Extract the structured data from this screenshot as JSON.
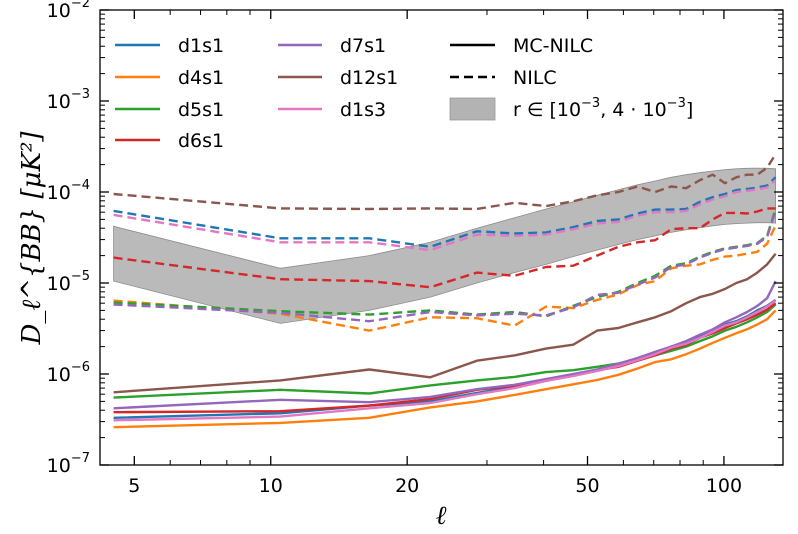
{
  "chart_data": {
    "type": "line",
    "xscale": "log",
    "yscale": "log",
    "xlim": [
      4.2,
      135
    ],
    "ylim": [
      1e-07,
      0.01
    ],
    "xlabel": "ℓ",
    "ylabel": "D_ℓ^{BB} [μK²]",
    "x_ticks": [
      {
        "value": 5,
        "label": "5"
      },
      {
        "value": 10,
        "label": "10"
      },
      {
        "value": 20,
        "label": "20"
      },
      {
        "value": 50,
        "label": "50"
      },
      {
        "value": 100,
        "label": "100"
      }
    ],
    "y_ticks": [
      {
        "value": 1e-07,
        "base": "10",
        "exp": "−7"
      },
      {
        "value": 1e-06,
        "base": "10",
        "exp": "−6"
      },
      {
        "value": 1e-05,
        "base": "10",
        "exp": "−5"
      },
      {
        "value": 0.0001,
        "base": "10",
        "exp": "−4"
      },
      {
        "value": 0.001,
        "base": "10",
        "exp": "−3"
      },
      {
        "value": 0.01,
        "base": "10",
        "exp": "−2"
      }
    ],
    "x": [
      4.5,
      10.5,
      16.5,
      22.5,
      28.5,
      34.5,
      40.5,
      46.5,
      52.5,
      58.5,
      64.5,
      70.5,
      76.5,
      82.5,
      88.5,
      94.5,
      100.5,
      106.5,
      112.5,
      118.5,
      124.5,
      130
    ],
    "series": [
      {
        "name": "d1s1",
        "style": "dashed",
        "color": "#1f77b4",
        "values": [
          6.2e-05,
          3.1e-05,
          3.1e-05,
          2.5e-05,
          3.7e-05,
          3.5e-05,
          3.6e-05,
          4.1e-05,
          4.8e-05,
          5e-05,
          5.8e-05,
          6.4e-05,
          6.4e-05,
          6.5e-05,
          7.8e-05,
          8.8e-05,
          9.5e-05,
          0.000105,
          0.000108,
          0.000112,
          0.000118,
          0.000145
        ]
      },
      {
        "name": "d4s1",
        "style": "dashed",
        "color": "#ff7f0e",
        "values": [
          6.4e-06,
          4.6e-06,
          3e-06,
          4.2e-06,
          4.1e-06,
          3.4e-06,
          5.5e-06,
          5.3e-06,
          6.5e-06,
          7.5e-06,
          9.5e-06,
          1.05e-05,
          1.45e-05,
          1.55e-05,
          1.6e-05,
          1.8e-05,
          1.95e-05,
          2e-05,
          2.1e-05,
          2.2e-05,
          2.7e-05,
          4.3e-05
        ]
      },
      {
        "name": "d5s1",
        "style": "dashed",
        "color": "#2ca02c",
        "values": [
          6.1e-06,
          4.9e-06,
          4.5e-06,
          5e-06,
          4.5e-06,
          4.8e-06,
          4.3e-06,
          5.6e-06,
          7e-06,
          8e-06,
          1e-05,
          1.2e-05,
          1.55e-05,
          1.65e-05,
          1.95e-05,
          2.2e-05,
          2.4e-05,
          2.5e-05,
          2.6e-05,
          2.75e-05,
          3.3e-05,
          6.5e-05
        ]
      },
      {
        "name": "d6s1",
        "style": "dashed",
        "color": "#d62728",
        "values": [
          1.9e-05,
          1.1e-05,
          1.05e-05,
          9e-06,
          1.3e-05,
          1.2e-05,
          1.5e-05,
          1.55e-05,
          2e-05,
          2.5e-05,
          2.8e-05,
          2.95e-05,
          3.9e-05,
          4e-05,
          4e-05,
          5e-05,
          5.9e-05,
          5.9e-05,
          5.8e-05,
          6.1e-05,
          6.6e-05,
          6.6e-05
        ]
      },
      {
        "name": "d7s1",
        "style": "dashed",
        "color": "#9467bd",
        "values": [
          5.8e-06,
          4.7e-06,
          3.8e-06,
          4.8e-06,
          4.4e-06,
          4.6e-06,
          4.4e-06,
          5.4e-06,
          7.4e-06,
          7.8e-06,
          9.6e-06,
          1.15e-05,
          1.5e-05,
          1.6e-05,
          1.9e-05,
          2.15e-05,
          2.35e-05,
          2.45e-05,
          2.55e-05,
          2.7e-05,
          3.2e-05,
          6.2e-05
        ]
      },
      {
        "name": "d12s1",
        "style": "dashed",
        "color": "#8c564b",
        "values": [
          9.5e-05,
          6.6e-05,
          6.5e-05,
          6.6e-05,
          6.5e-05,
          7.6e-05,
          7e-05,
          7.9e-05,
          9.2e-05,
          0.0001,
          0.000115,
          0.0001,
          0.000115,
          0.00011,
          0.000135,
          0.000155,
          0.000125,
          0.000145,
          0.000155,
          0.000155,
          0.000185,
          0.00026
        ]
      },
      {
        "name": "d1s3",
        "style": "dashed",
        "color": "#e377c2",
        "values": [
          5.6e-05,
          2.8e-05,
          2.8e-05,
          2.3e-05,
          3.4e-05,
          3.3e-05,
          3.4e-05,
          3.9e-05,
          4.5e-05,
          4.7e-05,
          5.5e-05,
          6e-05,
          6e-05,
          6.2e-05,
          7.3e-05,
          8.3e-05,
          9e-05,
          0.0001,
          0.000103,
          0.000107,
          0.000112,
          0.000135
        ]
      },
      {
        "name": "d1s1",
        "style": "solid",
        "color": "#1f77b4",
        "values": [
          3.3e-07,
          3.7e-07,
          4.5e-07,
          5e-07,
          6.2e-07,
          7.2e-07,
          8.6e-07,
          9.8e-07,
          1.1e-06,
          1.25e-06,
          1.45e-06,
          1.7e-06,
          2e-06,
          2.2e-06,
          2.6e-06,
          3e-06,
          3.5e-06,
          3.8e-06,
          4.3e-06,
          5e-06,
          5.6e-06,
          6.5e-06
        ]
      },
      {
        "name": "d4s1",
        "style": "solid",
        "color": "#ff7f0e",
        "values": [
          2.6e-07,
          2.9e-07,
          3.3e-07,
          4.3e-07,
          5e-07,
          5.9e-07,
          6.8e-07,
          7.7e-07,
          8.6e-07,
          9.8e-07,
          1.15e-06,
          1.35e-06,
          1.45e-06,
          1.65e-06,
          1.9e-06,
          2.2e-06,
          2.5e-06,
          2.8e-06,
          3.1e-06,
          3.5e-06,
          4e-06,
          5e-06
        ]
      },
      {
        "name": "d5s1",
        "style": "solid",
        "color": "#2ca02c",
        "values": [
          5.5e-07,
          6.7e-07,
          6.1e-07,
          7.5e-07,
          8.5e-07,
          9.3e-07,
          1.05e-06,
          1.1e-06,
          1.2e-06,
          1.3e-06,
          1.45e-06,
          1.6e-06,
          1.8e-06,
          2e-06,
          2.3e-06,
          2.6e-06,
          3e-06,
          3.3e-06,
          3.7e-06,
          4.2e-06,
          4.8e-06,
          5.8e-06
        ]
      },
      {
        "name": "d6s1",
        "style": "solid",
        "color": "#d62728",
        "values": [
          3.8e-07,
          3.9e-07,
          4.5e-07,
          5.3e-07,
          6.7e-07,
          7.4e-07,
          8.6e-07,
          9.7e-07,
          1.1e-06,
          1.2e-06,
          1.4e-06,
          1.6e-06,
          1.9e-06,
          2.1e-06,
          2.5e-06,
          2.8e-06,
          3.2e-06,
          3.6e-06,
          4e-06,
          4.5e-06,
          5.1e-06,
          6e-06
        ]
      },
      {
        "name": "d7s1",
        "style": "solid",
        "color": "#9467bd",
        "values": [
          4.2e-07,
          5.2e-07,
          4.9e-07,
          5.6e-07,
          6.8e-07,
          7.6e-07,
          8.8e-07,
          1e-06,
          1.12e-06,
          1.3e-06,
          1.5e-06,
          1.75e-06,
          2e-06,
          2.3e-06,
          2.7e-06,
          3.1e-06,
          3.7e-06,
          4.2e-06,
          4.8e-06,
          5.6e-06,
          6.8e-06,
          1.05e-05
        ]
      },
      {
        "name": "d12s1",
        "style": "solid",
        "color": "#8c564b",
        "values": [
          6.3e-07,
          8.5e-07,
          1.12e-06,
          9.2e-07,
          1.4e-06,
          1.6e-06,
          1.9e-06,
          2.1e-06,
          3e-06,
          3.2e-06,
          3.7e-06,
          4.2e-06,
          4.9e-06,
          6e-06,
          7e-06,
          7.6e-06,
          8.6e-06,
          1e-05,
          1.1e-05,
          1.3e-05,
          1.6e-05,
          2.1e-05
        ]
      },
      {
        "name": "d1s3",
        "style": "solid",
        "color": "#e377c2",
        "values": [
          3.1e-07,
          3.4e-07,
          4.2e-07,
          4.8e-07,
          6e-07,
          7e-07,
          8.4e-07,
          9.5e-07,
          1.08e-06,
          1.22e-06,
          1.42e-06,
          1.65e-06,
          1.95e-06,
          2.15e-06,
          2.5e-06,
          2.9e-06,
          3.4e-06,
          3.7e-06,
          4.2e-06,
          4.8e-06,
          5.5e-06,
          6.4e-06
        ]
      }
    ],
    "band": {
      "label_prefix": "r ∈ [10",
      "label_exp1": "−3",
      "label_mid": ", 4 · 10",
      "label_exp2": "−3",
      "label_suffix": "]",
      "color": "#b3b3b3",
      "x": [
        4.5,
        10.5,
        16.5,
        22.5,
        28.5,
        34.5,
        40.5,
        46.5,
        52.5,
        58.5,
        64.5,
        70.5,
        76.5,
        82.5,
        88.5,
        94.5,
        100.5,
        106.5,
        112.5,
        118.5,
        124.5,
        130
      ],
      "lower": [
        1.05e-05,
        3.6e-06,
        5e-06,
        7e-06,
        1e-05,
        1.3e-05,
        1.6e-05,
        1.95e-05,
        2.3e-05,
        2.65e-05,
        3e-05,
        3.3e-05,
        3.6e-05,
        3.85e-05,
        4.05e-05,
        4.25e-05,
        4.4e-05,
        4.5e-05,
        4.55e-05,
        4.6e-05,
        4.6e-05,
        4.55e-05
      ],
      "upper": [
        4.2e-05,
        1.45e-05,
        2e-05,
        2.8e-05,
        4e-05,
        5.2e-05,
        6.5e-05,
        7.8e-05,
        9.2e-05,
        0.000106,
        0.00012,
        0.000132,
        0.000145,
        0.000155,
        0.000163,
        0.00017,
        0.000176,
        0.00018,
        0.000182,
        0.000183,
        0.000182,
        0.00018
      ]
    },
    "legend": {
      "position": "top",
      "colors": [
        {
          "label": "d1s1",
          "color": "#1f77b4"
        },
        {
          "label": "d4s1",
          "color": "#ff7f0e"
        },
        {
          "label": "d5s1",
          "color": "#2ca02c"
        },
        {
          "label": "d6s1",
          "color": "#d62728"
        },
        {
          "label": "d7s1",
          "color": "#9467bd"
        },
        {
          "label": "d12s1",
          "color": "#8c564b"
        },
        {
          "label": "d1s3",
          "color": "#e377c2"
        }
      ],
      "styles": [
        {
          "label": "MC-NILC",
          "style": "solid"
        },
        {
          "label": "NILC",
          "style": "dashed"
        }
      ]
    }
  }
}
